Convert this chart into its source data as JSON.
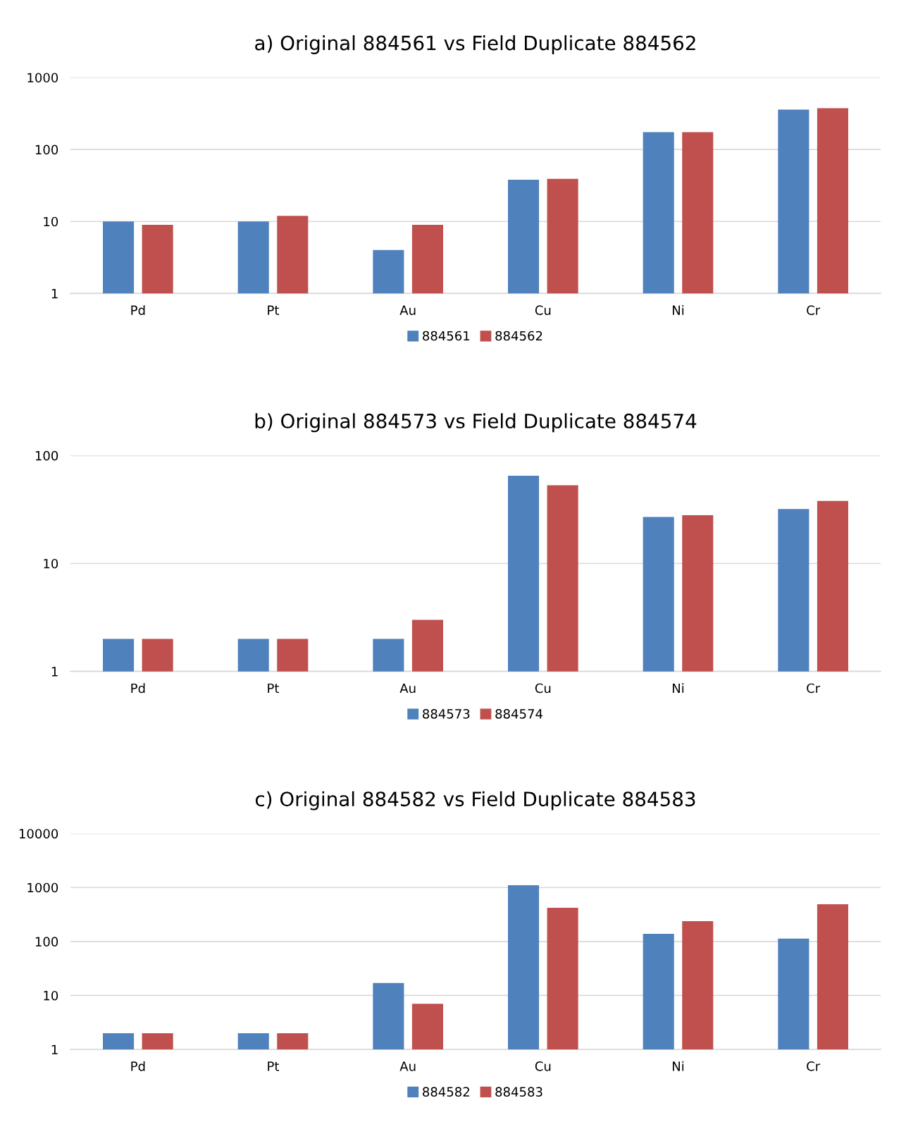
{
  "chart_data": [
    {
      "type": "bar",
      "title": "a) Original 884561 vs Field Duplicate 884562",
      "categories": [
        "Pd",
        "Pt",
        "Au",
        "Cu",
        "Ni",
        "Cr"
      ],
      "log": "y",
      "ylim": [
        1,
        1000
      ],
      "yticks": [
        1,
        10,
        100,
        1000
      ],
      "grid": "y",
      "legend": "bottom",
      "series": [
        {
          "name": "884561",
          "color": "#4f81bd",
          "values": [
            10,
            10,
            4,
            38,
            174,
            358
          ]
        },
        {
          "name": "884562",
          "color": "#c0504d",
          "values": [
            9,
            12,
            9,
            39,
            174,
            375
          ]
        }
      ]
    },
    {
      "type": "bar",
      "title": "b) Original 884573 vs Field Duplicate 884574",
      "categories": [
        "Pd",
        "Pt",
        "Au",
        "Cu",
        "Ni",
        "Cr"
      ],
      "log": "y",
      "ylim": [
        1,
        100
      ],
      "yticks": [
        1,
        10,
        100
      ],
      "grid": "y",
      "legend": "bottom",
      "series": [
        {
          "name": "884573",
          "color": "#4f81bd",
          "values": [
            2,
            2,
            2,
            65,
            27,
            32
          ]
        },
        {
          "name": "884574",
          "color": "#c0504d",
          "values": [
            2,
            2,
            3,
            53,
            28,
            38
          ]
        }
      ]
    },
    {
      "type": "bar",
      "title": "c) Original 884582 vs Field Duplicate 884583",
      "categories": [
        "Pd",
        "Pt",
        "Au",
        "Cu",
        "Ni",
        "Cr"
      ],
      "log": "y",
      "ylim": [
        1,
        10000
      ],
      "yticks": [
        1,
        10,
        100,
        1000,
        10000
      ],
      "grid": "y",
      "legend": "bottom",
      "series": [
        {
          "name": "884582",
          "color": "#4f81bd",
          "values": [
            2,
            2,
            17,
            1100,
            139,
            113
          ]
        },
        {
          "name": "884583",
          "color": "#c0504d",
          "values": [
            2,
            2,
            7,
            420,
            238,
            490
          ]
        }
      ]
    }
  ]
}
